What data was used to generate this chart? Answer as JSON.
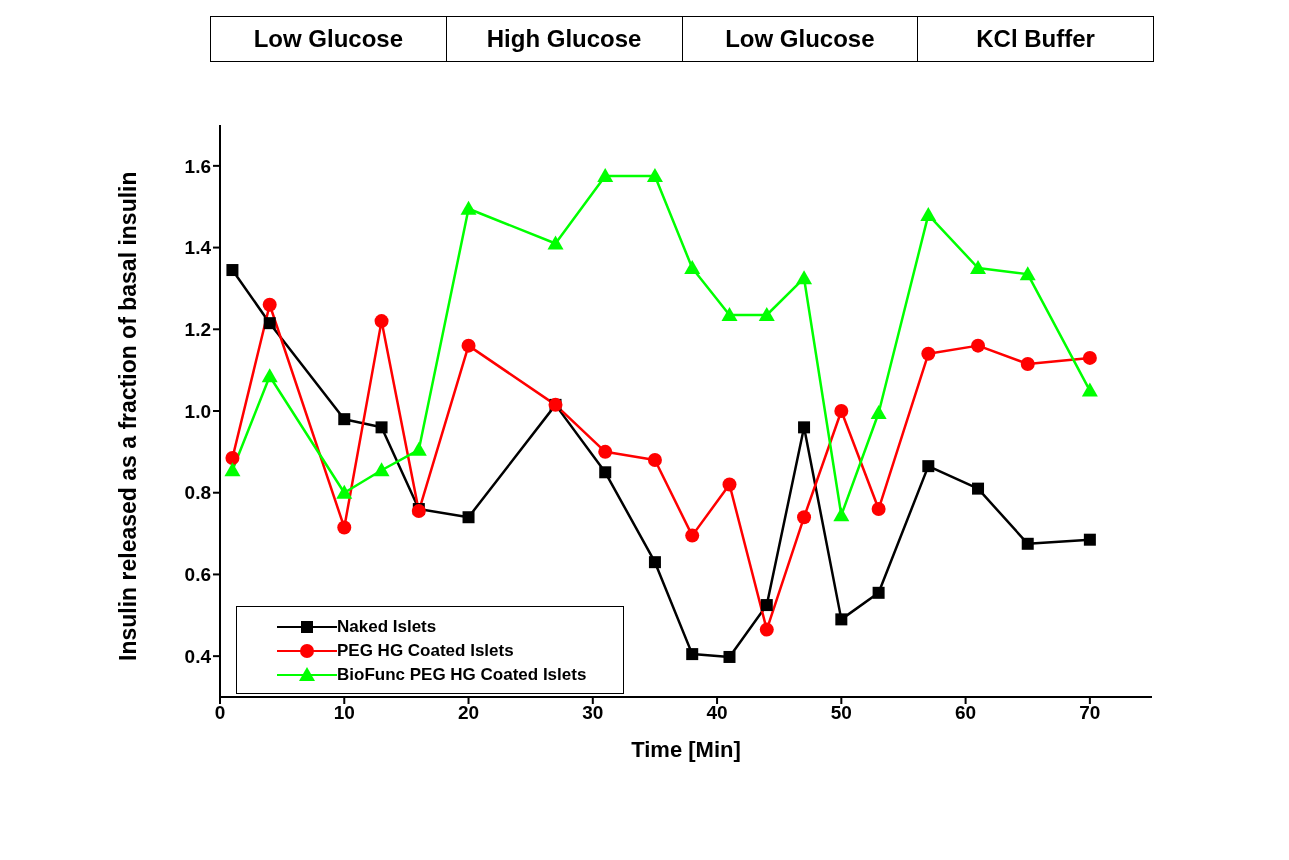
{
  "chart_data": {
    "type": "line",
    "xlabel": "Time [Min]",
    "ylabel": "Insulin released as a fraction of basal insulin",
    "x": [
      1,
      4,
      10,
      13,
      16,
      20,
      27,
      31,
      35,
      38,
      41,
      44,
      47,
      50,
      53,
      57,
      61,
      65,
      70
    ],
    "series": [
      {
        "name": "Naked Islets",
        "color": "#000000",
        "marker": "square",
        "values": [
          1.345,
          1.215,
          0.98,
          0.96,
          0.76,
          0.74,
          1.015,
          0.85,
          0.63,
          0.405,
          0.398,
          0.525,
          0.96,
          0.49,
          0.555,
          0.865,
          0.81,
          0.675,
          0.685
        ]
      },
      {
        "name": "PEG HG Coated Islets",
        "color": "#ff0000",
        "marker": "circle",
        "values": [
          0.885,
          1.26,
          0.715,
          1.22,
          0.755,
          1.16,
          1.015,
          0.9,
          0.88,
          0.695,
          0.82,
          0.465,
          0.74,
          1.0,
          0.76,
          1.14,
          1.16,
          1.115,
          1.13
        ]
      },
      {
        "name": "BioFunc PEG HG Coated Islets",
        "color": "#00ff00",
        "marker": "triangle",
        "values": [
          0.855,
          1.085,
          0.8,
          0.855,
          0.905,
          1.495,
          1.41,
          1.575,
          1.575,
          1.35,
          1.235,
          1.235,
          1.325,
          0.745,
          0.995,
          1.48,
          1.35,
          1.335,
          1.05
        ]
      }
    ],
    "xlim": [
      0,
      75
    ],
    "xticks": [
      0,
      10,
      20,
      30,
      40,
      50,
      60,
      70
    ],
    "ylim": [
      0.3,
      1.7
    ],
    "yticks": [
      0.4,
      0.6,
      0.8,
      {
        "value": 1,
        "label": "1.0"
      },
      1.2,
      1.4,
      1.6
    ],
    "annotations": [
      "Low Glucose",
      "High Glucose",
      "Low Glucose",
      "KCl Buffer"
    ],
    "legend": "bottom left",
    "grid": false,
    "line_style": "solid"
  }
}
